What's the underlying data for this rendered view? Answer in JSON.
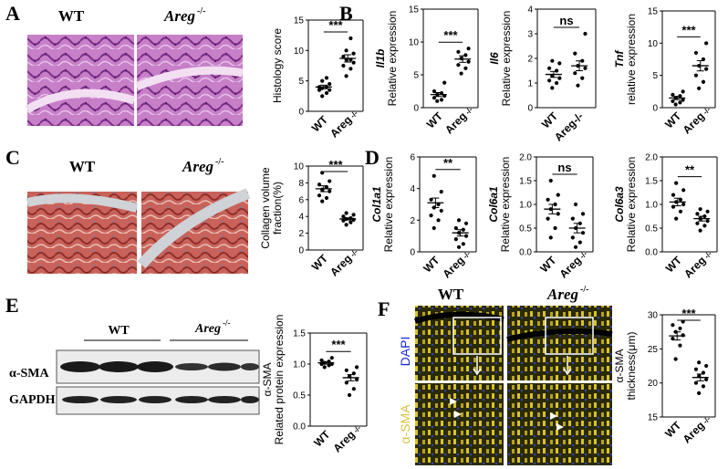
{
  "panels": {
    "A": {
      "letter": "A",
      "group_labels": [
        "WT",
        "Areg"
      ],
      "superscript": "-/-",
      "chart": {
        "type": "scatter",
        "ylabel": "Histology score",
        "ylim": [
          0,
          15
        ],
        "yticks": [
          0,
          5,
          10,
          15
        ],
        "categories": [
          "WT",
          "Areg"
        ],
        "category_sup": [
          "",
          "-/-"
        ],
        "significance": "***",
        "series": [
          {
            "values": [
              2.5,
              3.0,
              3.5,
              3.5,
              3.8,
              4.0,
              4.0,
              4.5,
              5.0,
              5.5
            ],
            "mean": 4.0,
            "sem": 0.3
          },
          {
            "values": [
              5.8,
              7.0,
              7.5,
              8.0,
              8.5,
              8.5,
              9.0,
              9.5,
              10.0,
              12.0
            ],
            "mean": 8.7,
            "sem": 0.6
          }
        ]
      }
    },
    "B": {
      "letter": "B",
      "charts": [
        {
          "type": "scatter",
          "gene": "Il1b",
          "ylabel": "Relative expression",
          "ylim": [
            0,
            15
          ],
          "yticks": [
            0,
            5,
            10,
            15
          ],
          "categories": [
            "WT",
            "Areg"
          ],
          "category_sup": [
            "",
            "-/-"
          ],
          "significance": "***",
          "series": [
            {
              "values": [
                1.0,
                1.2,
                1.5,
                1.8,
                2.0,
                2.2,
                2.5,
                3.8
              ],
              "mean": 2.0,
              "sem": 0.3
            },
            {
              "values": [
                5.2,
                6.0,
                6.5,
                7.0,
                7.5,
                8.0,
                8.5,
                9.0
              ],
              "mean": 7.4,
              "sem": 0.5
            }
          ]
        },
        {
          "type": "scatter",
          "gene": "Il6",
          "ylabel": "Relative expression",
          "ylim": [
            0,
            4
          ],
          "yticks": [
            0,
            1,
            2,
            3,
            4
          ],
          "categories": [
            "WT",
            "Areg-/-"
          ],
          "category_sup": [
            "",
            ""
          ],
          "significance": "ns",
          "series": [
            {
              "values": [
                0.8,
                1.0,
                1.1,
                1.2,
                1.3,
                1.5,
                1.6,
                1.8,
                1.9
              ],
              "mean": 1.35,
              "sem": 0.12
            },
            {
              "values": [
                0.9,
                1.2,
                1.4,
                1.6,
                1.7,
                1.9,
                2.2,
                3.0
              ],
              "mean": 1.7,
              "sem": 0.2
            }
          ]
        },
        {
          "type": "scatter",
          "gene": "Tnf",
          "ylabel": "relative expression",
          "ylim": [
            0,
            15
          ],
          "yticks": [
            0,
            5,
            10,
            15
          ],
          "categories": [
            "WT",
            "Areg"
          ],
          "category_sup": [
            "",
            "-/-"
          ],
          "significance": "***",
          "series": [
            {
              "values": [
                0.5,
                0.8,
                1.0,
                1.2,
                1.5,
                1.8,
                2.0,
                2.5
              ],
              "mean": 1.5,
              "sem": 0.25
            },
            {
              "values": [
                3.0,
                4.0,
                5.0,
                6.0,
                6.5,
                7.5,
                8.5,
                10.0
              ],
              "mean": 6.5,
              "sem": 0.8
            }
          ]
        }
      ]
    },
    "C": {
      "letter": "C",
      "group_labels": [
        "WT",
        "Areg"
      ],
      "superscript": "-/-",
      "chart": {
        "type": "scatter",
        "ylabel": "Collagen volume fraction(%)",
        "ylabel_lines": [
          "Collagen volume",
          "fraction(%)"
        ],
        "ylim": [
          0,
          10
        ],
        "yticks": [
          0,
          2,
          4,
          6,
          8,
          10
        ],
        "categories": [
          "WT",
          "Areg"
        ],
        "category_sup": [
          "",
          "-/-"
        ],
        "significance": "***",
        "series": [
          {
            "values": [
              5.8,
              6.2,
              6.5,
              7.0,
              7.2,
              7.5,
              7.8,
              8.2,
              9.2
            ],
            "mean": 7.3,
            "sem": 0.35
          },
          {
            "values": [
              3.0,
              3.3,
              3.5,
              3.6,
              3.7,
              3.8,
              4.0,
              4.2,
              4.4
            ],
            "mean": 3.7,
            "sem": 0.12
          }
        ]
      }
    },
    "D": {
      "letter": "D",
      "charts": [
        {
          "type": "scatter",
          "gene": "Col1a1",
          "ylabel": "Relative expression",
          "ylim": [
            0,
            6
          ],
          "yticks": [
            0,
            2,
            4,
            6
          ],
          "categories": [
            "WT",
            "Areg"
          ],
          "category_sup": [
            "",
            "-/-"
          ],
          "significance": "**",
          "series": [
            {
              "values": [
                1.5,
                2.0,
                2.3,
                2.6,
                2.8,
                3.0,
                3.3,
                3.8,
                4.8
              ],
              "mean": 3.1,
              "sem": 0.3
            },
            {
              "values": [
                0.3,
                0.5,
                0.8,
                1.0,
                1.2,
                1.4,
                1.5,
                1.8,
                2.0
              ],
              "mean": 1.2,
              "sem": 0.2
            }
          ]
        },
        {
          "type": "scatter",
          "gene": "Col6a1",
          "ylabel": "Relative expression",
          "ylim": [
            0,
            2.0
          ],
          "yticks": [
            0.0,
            0.5,
            1.0,
            1.5,
            2.0
          ],
          "categories": [
            "WT",
            "Areg"
          ],
          "category_sup": [
            "",
            "-/-"
          ],
          "significance": "ns",
          "series": [
            {
              "values": [
                0.3,
                0.5,
                0.7,
                0.8,
                0.9,
                1.0,
                1.1,
                1.2,
                1.5
              ],
              "mean": 0.9,
              "sem": 0.1
            },
            {
              "values": [
                0.1,
                0.2,
                0.3,
                0.4,
                0.5,
                0.6,
                0.7,
                0.8,
                1.0
              ],
              "mean": 0.5,
              "sem": 0.1
            }
          ]
        },
        {
          "type": "scatter",
          "gene": "Col6a3",
          "ylabel": "Relative expression",
          "ylim": [
            0,
            2.0
          ],
          "yticks": [
            0.0,
            0.5,
            1.0,
            1.5,
            2.0
          ],
          "categories": [
            "WT",
            "Areg"
          ],
          "category_sup": [
            "",
            "-/-"
          ],
          "significance": "**",
          "series": [
            {
              "values": [
                0.7,
                0.85,
                0.95,
                1.0,
                1.05,
                1.1,
                1.2,
                1.3,
                1.45
              ],
              "mean": 1.05,
              "sem": 0.08
            },
            {
              "values": [
                0.45,
                0.55,
                0.6,
                0.65,
                0.7,
                0.75,
                0.8,
                0.85,
                0.9
              ],
              "mean": 0.7,
              "sem": 0.05
            }
          ]
        }
      ]
    },
    "E": {
      "letter": "E",
      "group_labels": [
        "WT",
        "Areg"
      ],
      "superscript": "-/-",
      "row_labels": [
        "α-SMA",
        "GAPDH"
      ],
      "chart": {
        "type": "scatter",
        "ylabel": "Related protein expression",
        "ylabel_top": "α-SMA",
        "ylim": [
          0.0,
          1.5
        ],
        "yticks": [
          0.0,
          0.5,
          1.0,
          1.5
        ],
        "categories": [
          "WT",
          "Areg"
        ],
        "category_sup": [
          "",
          "-/-"
        ],
        "significance": "***",
        "series": [
          {
            "values": [
              0.95,
              0.98,
              1.0,
              1.0,
              1.02,
              1.04,
              1.06,
              1.1
            ],
            "mean": 1.02,
            "sem": 0.02
          },
          {
            "values": [
              0.5,
              0.6,
              0.7,
              0.75,
              0.8,
              0.85,
              0.9,
              0.95
            ],
            "mean": 0.78,
            "sem": 0.05
          }
        ]
      }
    },
    "F": {
      "letter": "F",
      "group_labels": [
        "WT",
        "Areg"
      ],
      "superscript": "-/-",
      "side_label_1": "α-SMA",
      "side_label_2": "DAPI",
      "chart": {
        "type": "scatter",
        "ylabel": "α-SMA thickness(μm)",
        "ylabel_lines": [
          "α-SMA",
          "thickness(μm)"
        ],
        "ylim": [
          15,
          30
        ],
        "yticks": [
          15,
          20,
          25,
          30
        ],
        "categories": [
          "WT",
          "Areg"
        ],
        "category_sup": [
          "",
          "-/-"
        ],
        "significance": "***",
        "series": [
          {
            "values": [
              23.5,
              25.5,
              26.5,
              27.0,
              27.5,
              28.0,
              28.5,
              29.0
            ],
            "mean": 26.9,
            "sem": 0.6
          },
          {
            "values": [
              18.5,
              19.5,
              20.0,
              20.5,
              21.0,
              21.5,
              22.0,
              22.5,
              23.0
            ],
            "mean": 20.8,
            "sem": 0.5
          }
        ]
      }
    }
  }
}
